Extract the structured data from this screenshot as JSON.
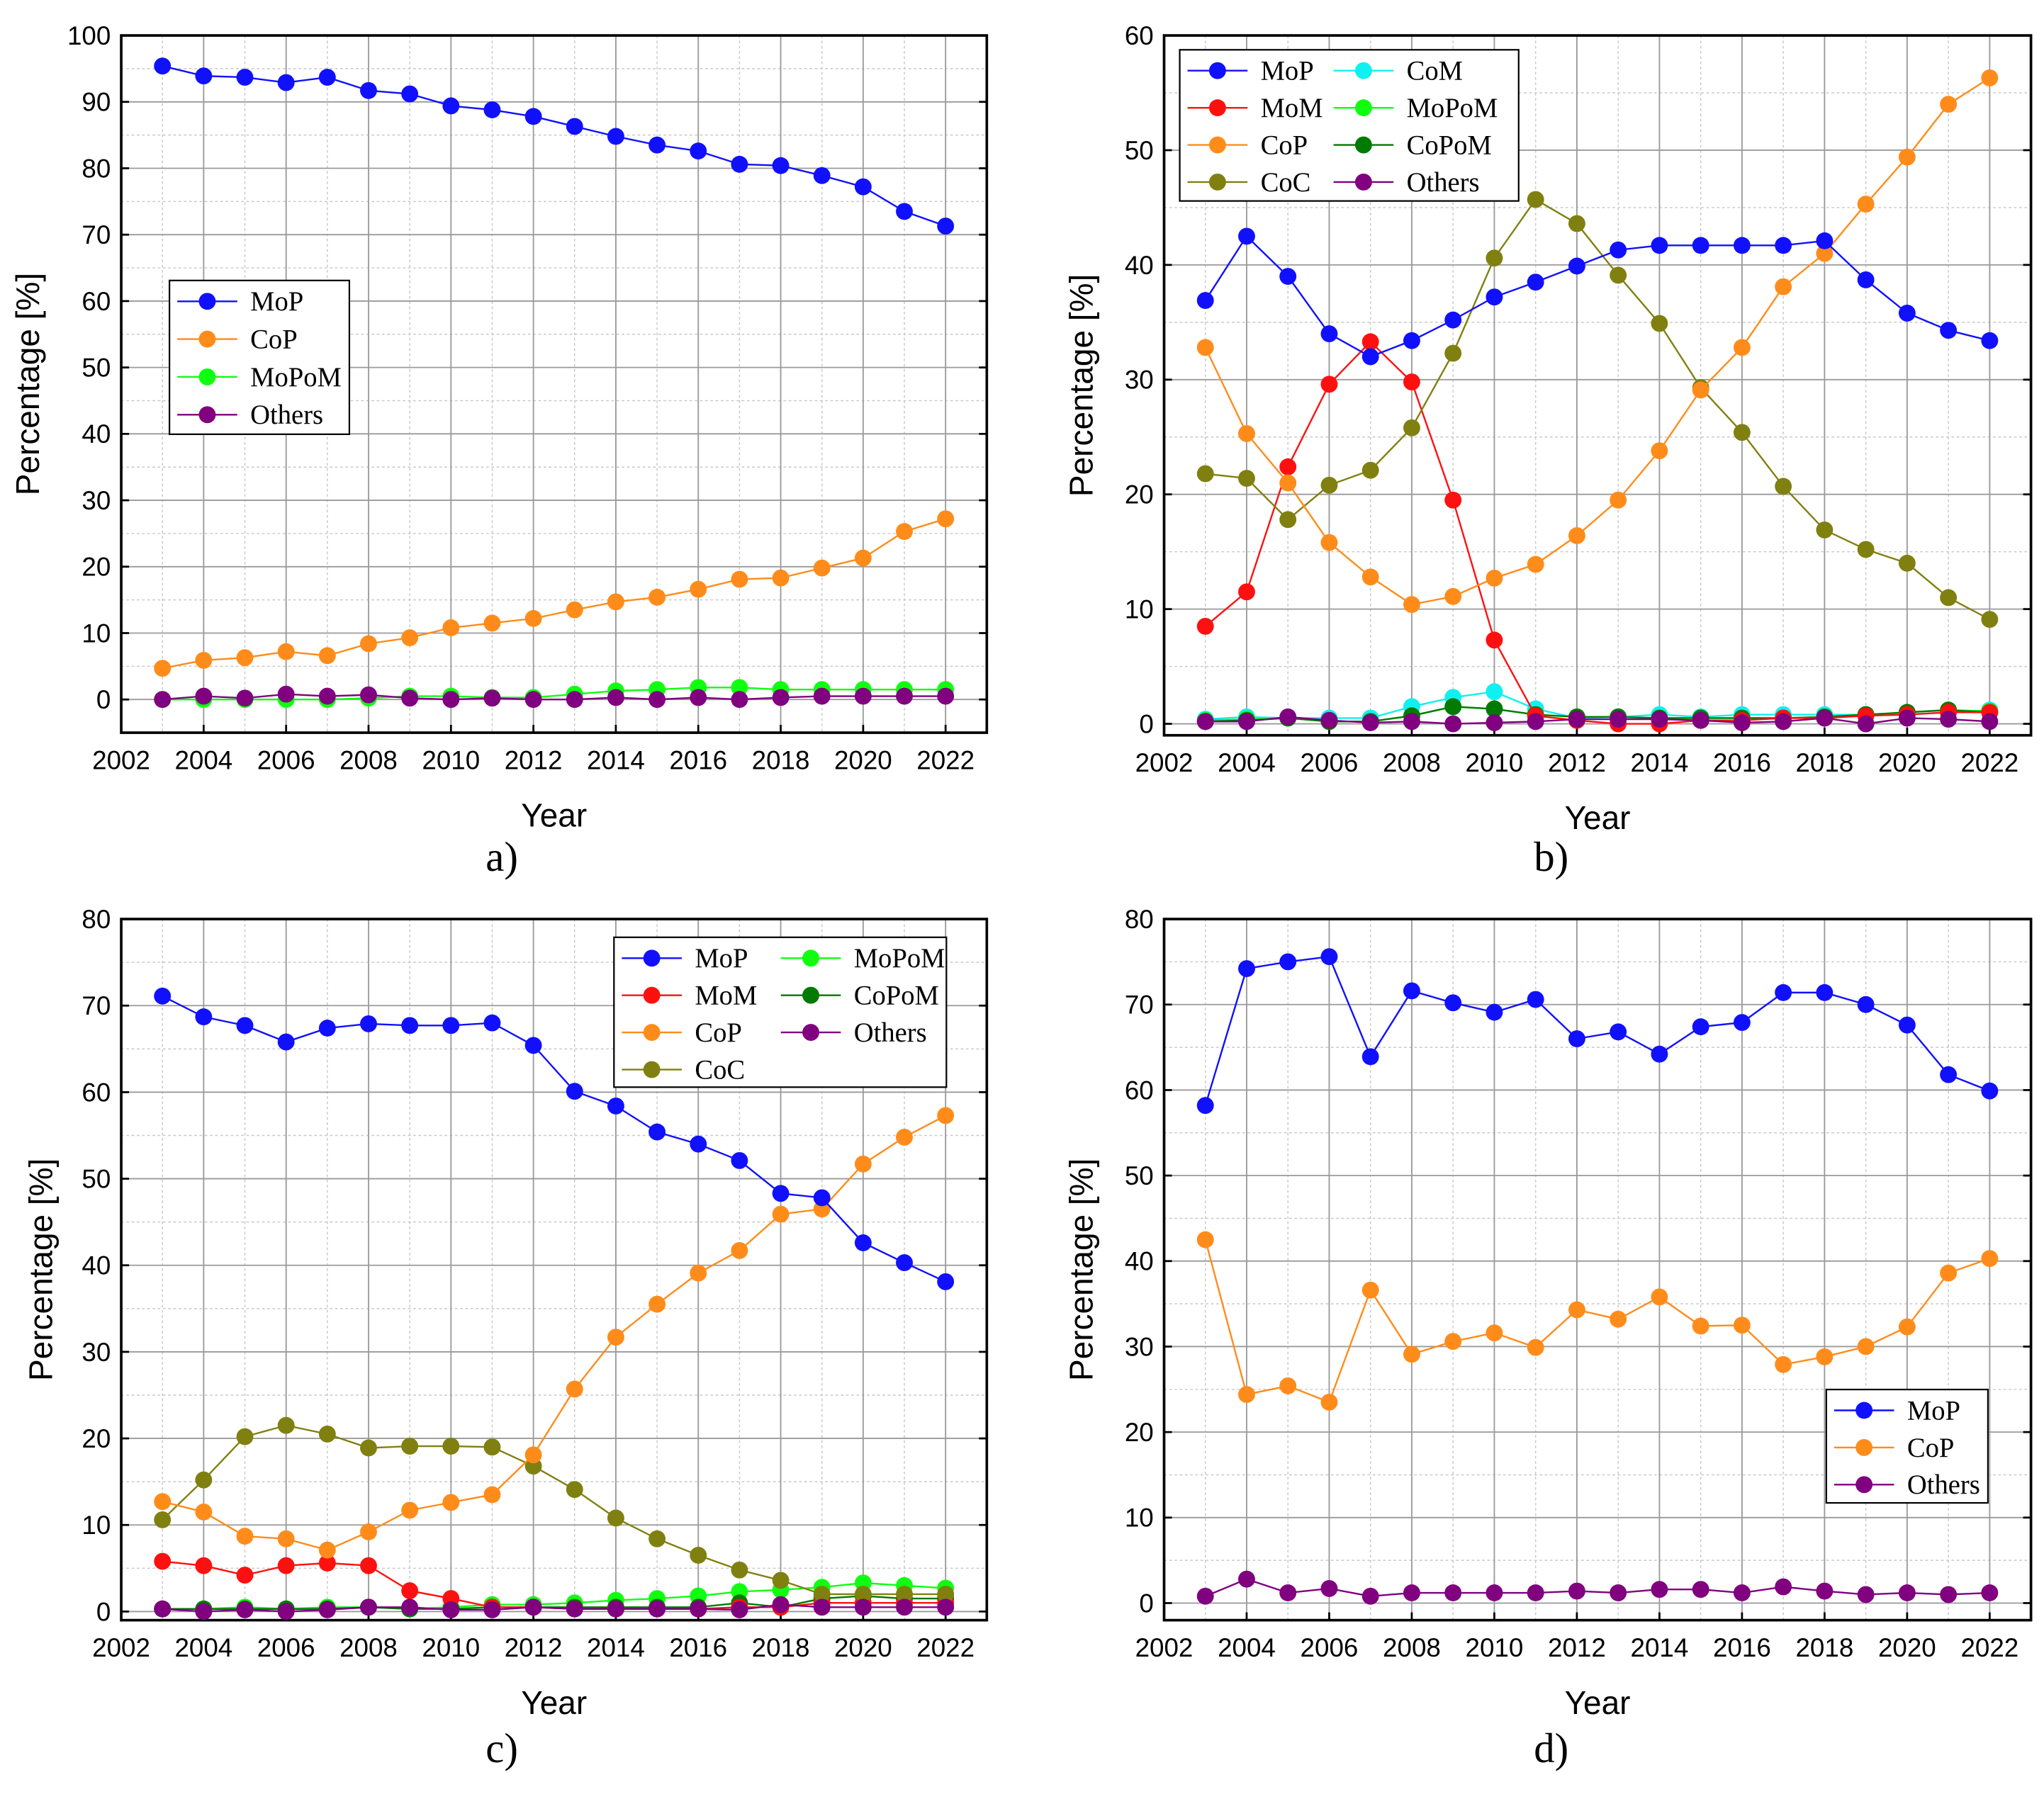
{
  "colors": {
    "MoP": "#1010ff",
    "MoM": "#ff1010",
    "CoP": "#ff8c1a",
    "CoC": "#808010",
    "CoM": "#10f0f0",
    "MoPoM": "#10ff10",
    "CoPoM": "#007a00",
    "Others": "#800080"
  },
  "chart_data": [
    {
      "type": "line",
      "panel_label": "a)",
      "xlabel": "Year",
      "ylabel": "Percentage [%]",
      "xlim": [
        2002,
        2023
      ],
      "ylim": [
        -5,
        100
      ],
      "xticks": [
        2002,
        2004,
        2006,
        2008,
        2010,
        2012,
        2014,
        2016,
        2018,
        2020,
        2022
      ],
      "yticks": [
        0,
        10,
        20,
        30,
        40,
        50,
        60,
        70,
        80,
        90,
        100
      ],
      "grid": true,
      "legend_placement": "center-left",
      "legend": [
        "MoP",
        "CoP",
        "MoPoM",
        "Others"
      ],
      "x": [
        2003,
        2004,
        2005,
        2006,
        2007,
        2008,
        2009,
        2010,
        2011,
        2012,
        2013,
        2014,
        2015,
        2016,
        2017,
        2018,
        2019,
        2020,
        2021,
        2022
      ],
      "series": [
        {
          "name": "MoP",
          "values": [
            95.4,
            93.9,
            93.7,
            92.9,
            93.7,
            91.7,
            91.2,
            89.4,
            88.8,
            87.8,
            86.3,
            84.8,
            83.5,
            82.6,
            80.6,
            80.4,
            78.9,
            77.2,
            73.5,
            71.3
          ]
        },
        {
          "name": "CoP",
          "values": [
            4.7,
            5.9,
            6.3,
            7.2,
            6.6,
            8.4,
            9.3,
            10.8,
            11.5,
            12.2,
            13.5,
            14.7,
            15.4,
            16.6,
            18.1,
            18.3,
            19.8,
            21.3,
            25.3,
            27.2
          ]
        },
        {
          "name": "MoPoM",
          "values": [
            0,
            0,
            0,
            0,
            0,
            0.2,
            0.5,
            0.5,
            0.3,
            0.3,
            0.8,
            1.3,
            1.5,
            1.8,
            1.8,
            1.5,
            1.5,
            1.5,
            1.5,
            1.5
          ]
        },
        {
          "name": "Others",
          "values": [
            0,
            0.5,
            0.2,
            0.8,
            0.5,
            0.7,
            0.2,
            0,
            0.2,
            0,
            0,
            0.3,
            0,
            0.3,
            0,
            0.3,
            0.5,
            0.5,
            0.5,
            0.5
          ]
        }
      ]
    },
    {
      "type": "line",
      "panel_label": "b)",
      "xlabel": "Year",
      "ylabel": "Percentage [%]",
      "xlim": [
        2002,
        2023
      ],
      "ylim": [
        -1,
        60
      ],
      "xticks": [
        2002,
        2004,
        2006,
        2008,
        2010,
        2012,
        2014,
        2016,
        2018,
        2020,
        2022
      ],
      "yticks": [
        0,
        10,
        20,
        30,
        40,
        50,
        60
      ],
      "grid": true,
      "legend_placement": "top-left",
      "legend": [
        "MoP",
        "CoM",
        "MoM",
        "MoPoM",
        "CoP",
        "CoPoM",
        "CoC",
        "Others"
      ],
      "x": [
        2003,
        2004,
        2005,
        2006,
        2007,
        2008,
        2009,
        2010,
        2011,
        2012,
        2013,
        2014,
        2015,
        2016,
        2017,
        2018,
        2019,
        2020,
        2021,
        2022
      ],
      "series": [
        {
          "name": "CoM",
          "values": [
            0.4,
            0.6,
            0.5,
            0.5,
            0.5,
            1.5,
            2.3,
            2.8,
            1.3,
            0.5,
            0.6,
            0.8,
            0.6,
            0.8,
            0.8,
            0.8,
            0.8,
            0.8,
            1.0,
            1.2
          ]
        },
        {
          "name": "MoPoM",
          "values": [
            0.3,
            0.4,
            0.5,
            0.2,
            0.2,
            0.7,
            1.5,
            1.3,
            0.8,
            0.6,
            0.6,
            0.5,
            0.5,
            0.5,
            0.5,
            0.6,
            0.8,
            1.0,
            1.2,
            1.1
          ]
        },
        {
          "name": "CoPoM",
          "values": [
            0.2,
            0.3,
            0.5,
            0.2,
            0.2,
            0.7,
            1.5,
            1.3,
            0.8,
            0.6,
            0.6,
            0.5,
            0.5,
            0.5,
            0.5,
            0.6,
            0.8,
            1.0,
            1.2,
            1.0
          ]
        },
        {
          "name": "MoM",
          "values": [
            8.5,
            11.5,
            22.4,
            29.6,
            33.3,
            29.8,
            19.5,
            7.3,
            0.7,
            0.3,
            0,
            0,
            0.3,
            0.3,
            0.5,
            0.5,
            0.7,
            0.8,
            1,
            1
          ]
        },
        {
          "name": "CoC",
          "values": [
            21.8,
            21.4,
            17.8,
            20.8,
            22.1,
            25.8,
            32.3,
            40.6,
            45.7,
            43.6,
            39.1,
            34.9,
            29.3,
            25.4,
            20.7,
            16.9,
            15.2,
            14.0,
            11.0,
            9.1
          ]
        },
        {
          "name": "CoP",
          "values": [
            32.8,
            25.3,
            21.0,
            15.8,
            12.8,
            10.4,
            11.1,
            12.7,
            13.9,
            16.4,
            19.5,
            23.8,
            29.1,
            32.8,
            38.1,
            41.0,
            45.3,
            49.4,
            54.0,
            56.3
          ]
        },
        {
          "name": "MoP",
          "values": [
            36.9,
            42.5,
            39.0,
            34.0,
            32.0,
            33.4,
            35.2,
            37.2,
            38.5,
            39.9,
            41.3,
            41.7,
            41.7,
            41.7,
            41.7,
            42.1,
            38.7,
            35.8,
            34.3,
            33.4
          ]
        },
        {
          "name": "Others",
          "values": [
            0.2,
            0.2,
            0.6,
            0.3,
            0.1,
            0.2,
            0,
            0.1,
            0.2,
            0.4,
            0.4,
            0.4,
            0.3,
            0.1,
            0.2,
            0.5,
            0,
            0.5,
            0.4,
            0.2
          ]
        }
      ]
    },
    {
      "type": "line",
      "panel_label": "c)",
      "xlabel": "Year",
      "ylabel": "Percentage [%]",
      "xlim": [
        2002,
        2023
      ],
      "ylim": [
        -1,
        80
      ],
      "xticks": [
        2002,
        2004,
        2006,
        2008,
        2010,
        2012,
        2014,
        2016,
        2018,
        2020,
        2022
      ],
      "yticks": [
        0,
        10,
        20,
        30,
        40,
        50,
        60,
        70,
        80
      ],
      "grid": true,
      "legend_placement": "top-right",
      "legend": [
        "MoP",
        "MoPoM",
        "MoM",
        "CoPoM",
        "CoP",
        "Others",
        "CoC"
      ],
      "x": [
        2003,
        2004,
        2005,
        2006,
        2007,
        2008,
        2009,
        2010,
        2011,
        2012,
        2013,
        2014,
        2015,
        2016,
        2017,
        2018,
        2019,
        2020,
        2021,
        2022
      ],
      "series": [
        {
          "name": "MoPoM",
          "values": [
            0.3,
            0.3,
            0.5,
            0.3,
            0.5,
            0.5,
            0.3,
            0.5,
            0.8,
            0.8,
            1.0,
            1.3,
            1.5,
            1.8,
            2.3,
            2.5,
            2.8,
            3.3,
            3.0,
            2.7
          ]
        },
        {
          "name": "CoPoM",
          "values": [
            0.3,
            0.3,
            0.3,
            0.3,
            0.3,
            0.5,
            0.3,
            0.3,
            0.5,
            0.5,
            0.5,
            0.5,
            0.5,
            0.5,
            1.0,
            0.5,
            1.5,
            1.8,
            1.5,
            1.5
          ]
        },
        {
          "name": "MoM",
          "values": [
            5.8,
            5.3,
            4.2,
            5.3,
            5.6,
            5.3,
            2.4,
            1.5,
            0.5,
            0.5,
            0.3,
            0.3,
            0.3,
            0.3,
            0.5,
            0.5,
            1.0,
            1.0,
            1.0,
            1.0
          ]
        },
        {
          "name": "CoC",
          "values": [
            10.6,
            15.2,
            20.2,
            21.5,
            20.5,
            18.9,
            19.1,
            19.1,
            19.0,
            16.8,
            14.1,
            10.8,
            8.4,
            6.5,
            4.8,
            3.6,
            2.0,
            2.0,
            2.0,
            2.0
          ]
        },
        {
          "name": "CoP",
          "values": [
            12.7,
            11.5,
            8.7,
            8.4,
            7.1,
            9.2,
            11.7,
            12.6,
            13.5,
            18.1,
            25.7,
            31.7,
            35.5,
            39.1,
            41.7,
            45.9,
            46.5,
            51.7,
            54.8,
            57.3
          ]
        },
        {
          "name": "MoP",
          "values": [
            71.1,
            68.7,
            67.7,
            65.8,
            67.4,
            67.9,
            67.7,
            67.7,
            68.0,
            65.4,
            60.1,
            58.4,
            55.4,
            54.0,
            52.1,
            48.3,
            47.8,
            42.6,
            40.3,
            38.1
          ]
        },
        {
          "name": "Others",
          "values": [
            0.3,
            0,
            0.2,
            0,
            0.2,
            0.5,
            0.5,
            0.2,
            0.2,
            0.5,
            0.3,
            0.3,
            0.3,
            0.3,
            0.2,
            0.8,
            0.5,
            0.5,
            0.5,
            0.5
          ]
        }
      ]
    },
    {
      "type": "line",
      "panel_label": "d)",
      "xlabel": "Year",
      "ylabel": "Percentage [%]",
      "xlim": [
        2002,
        2023
      ],
      "ylim": [
        -2,
        80
      ],
      "xticks": [
        2002,
        2004,
        2006,
        2008,
        2010,
        2012,
        2014,
        2016,
        2018,
        2020,
        2022
      ],
      "yticks": [
        0,
        10,
        20,
        30,
        40,
        50,
        60,
        70,
        80
      ],
      "grid": true,
      "legend_placement": "bottom-right",
      "legend": [
        "MoP",
        "CoP",
        "Others"
      ],
      "x": [
        2003,
        2004,
        2005,
        2006,
        2007,
        2008,
        2009,
        2010,
        2011,
        2012,
        2013,
        2014,
        2015,
        2016,
        2017,
        2018,
        2019,
        2020,
        2021,
        2022
      ],
      "series": [
        {
          "name": "MoP",
          "values": [
            58.2,
            74.2,
            75.0,
            75.6,
            63.9,
            71.6,
            70.2,
            69.1,
            70.6,
            66.0,
            66.8,
            64.2,
            67.4,
            67.9,
            71.4,
            71.4,
            70.0,
            67.6,
            61.8,
            59.9
          ]
        },
        {
          "name": "CoP",
          "values": [
            42.5,
            24.4,
            25.4,
            23.5,
            36.6,
            29.1,
            30.6,
            31.6,
            29.9,
            34.3,
            33.2,
            35.8,
            32.4,
            32.5,
            27.9,
            28.8,
            30.0,
            32.3,
            38.6,
            40.3
          ]
        },
        {
          "name": "Others",
          "values": [
            0.8,
            2.8,
            1.2,
            1.7,
            0.8,
            1.2,
            1.2,
            1.2,
            1.2,
            1.4,
            1.2,
            1.6,
            1.6,
            1.2,
            1.9,
            1.4,
            1.0,
            1.2,
            1.0,
            1.2
          ]
        }
      ]
    }
  ]
}
